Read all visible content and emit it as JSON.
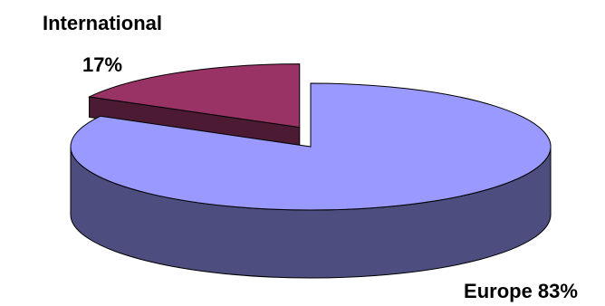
{
  "chart_data": {
    "type": "pie",
    "style": "3d-exploded",
    "slices": [
      {
        "label": "Europe",
        "value": 83,
        "value_label": "83%",
        "color": "#9999ff",
        "side_color": "#4d4d80"
      },
      {
        "label": "International",
        "value": 17,
        "value_label": "17%",
        "color": "#993366",
        "side_color": "#4d1a33",
        "exploded": true
      }
    ],
    "labels": {
      "europe": "Europe 83%",
      "international_name": "International",
      "international_value": "17%"
    },
    "title": "",
    "legend": "none"
  }
}
